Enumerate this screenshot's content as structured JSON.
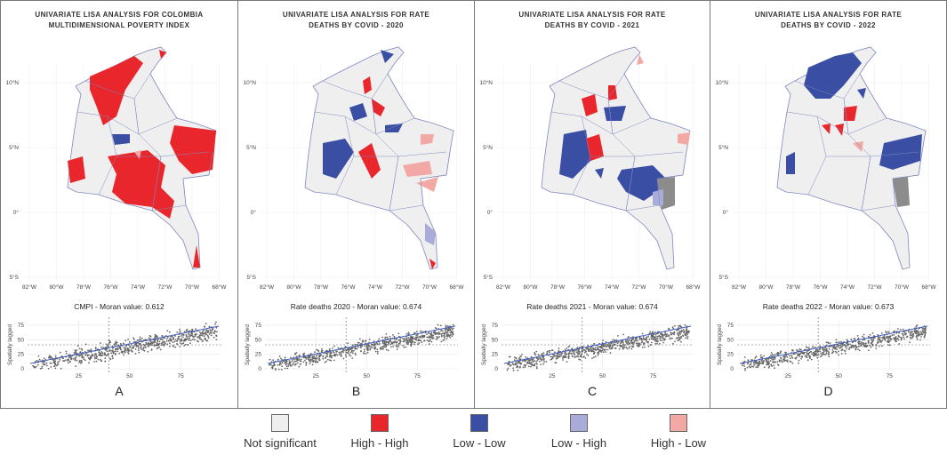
{
  "panels": [
    {
      "id": "A",
      "title": [
        "UNIVARIATE LISA ANALYSIS FOR COLOMBIA",
        "MULTIDIMENSIONAL POVERTY INDEX"
      ],
      "scatter_title": "CMPI - Moran value: 0.612",
      "moran": 0.612,
      "label": "A"
    },
    {
      "id": "B",
      "title": [
        "UNIVARIATE LISA ANALYSIS FOR RATE",
        "DEATHS BY COVID - 2020"
      ],
      "scatter_title": "Rate deaths 2020 - Moran value: 0.674",
      "moran": 0.674,
      "label": "B"
    },
    {
      "id": "C",
      "title": [
        "UNIVARIATE LISA ANALYSIS FOR RATE",
        "DEATHS BY COVID - 2021"
      ],
      "scatter_title": "Rate deaths 2021 - Moran value: 0.674",
      "moran": 0.674,
      "label": "C"
    },
    {
      "id": "D",
      "title": [
        "UNIVARIATE LISA ANALYSIS FOR RATE",
        "DEATHS BY COVID - 2022"
      ],
      "scatter_title": "Rate deaths 2022 - Moran value: 0.673",
      "moran": 0.673,
      "label": "D"
    }
  ],
  "map_axes": {
    "lat_ticks": [
      "10°N",
      "5°N",
      "0°",
      "5°S"
    ],
    "lon_ticks": [
      "82°W",
      "80°W",
      "78°W",
      "76°W",
      "74°W",
      "72°W",
      "70°W",
      "68°W"
    ]
  },
  "scatter_axes": {
    "ylabel": "Spatially lagged",
    "x_ticks": [
      "25",
      "50",
      "75"
    ],
    "y_ticks": [
      "0",
      "25",
      "50",
      "75"
    ]
  },
  "legend": [
    {
      "label": "Not significant",
      "color": "#efefef"
    },
    {
      "label": "High - High",
      "color": "#e8262b"
    },
    {
      "label": "Low - Low",
      "color": "#3a4fa3"
    },
    {
      "label": "Low - High",
      "color": "#a9acd8"
    },
    {
      "label": "High - Low",
      "color": "#f2a9a6"
    }
  ],
  "colors": {
    "outline": "#8088c0",
    "gray": "#8c8c8c",
    "regression": "#4060c0",
    "points": "#666666"
  }
}
